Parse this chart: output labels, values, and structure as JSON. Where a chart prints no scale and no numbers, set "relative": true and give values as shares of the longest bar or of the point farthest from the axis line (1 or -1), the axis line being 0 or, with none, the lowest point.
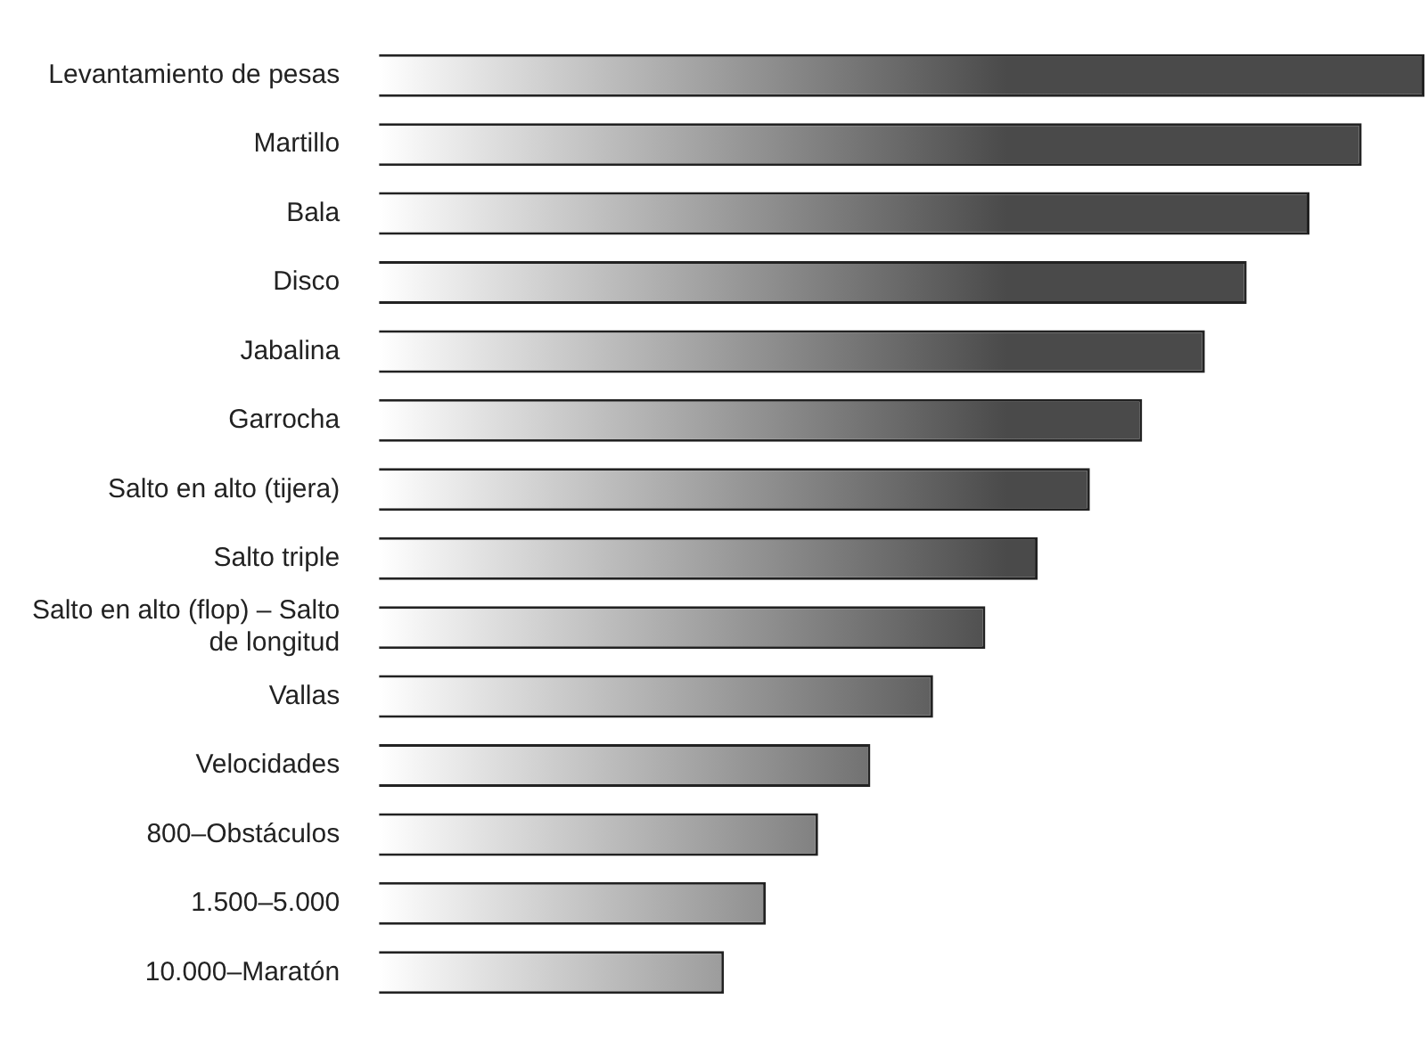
{
  "chart_data": {
    "type": "bar",
    "orientation": "horizontal",
    "relative": true,
    "legend": false,
    "categories": [
      "Levantamiento de pesas",
      "Martillo",
      "Bala",
      "Disco",
      "Jabalina",
      "Garrocha",
      "Salto en alto (tijera)",
      "Salto triple",
      "Salto en alto (flop) – Salto de longitud",
      "Vallas",
      "Velocidades",
      "800–Obstáculos",
      "1.500–5.000",
      "10.000–Maratón"
    ],
    "color": "#4a4a4a",
    "values": [
      1,
      0.94,
      0.89,
      0.83,
      0.79,
      0.73,
      0.68,
      0.63,
      0.58,
      0.53,
      0.47,
      0.42,
      0.37,
      0.33
    ]
  }
}
